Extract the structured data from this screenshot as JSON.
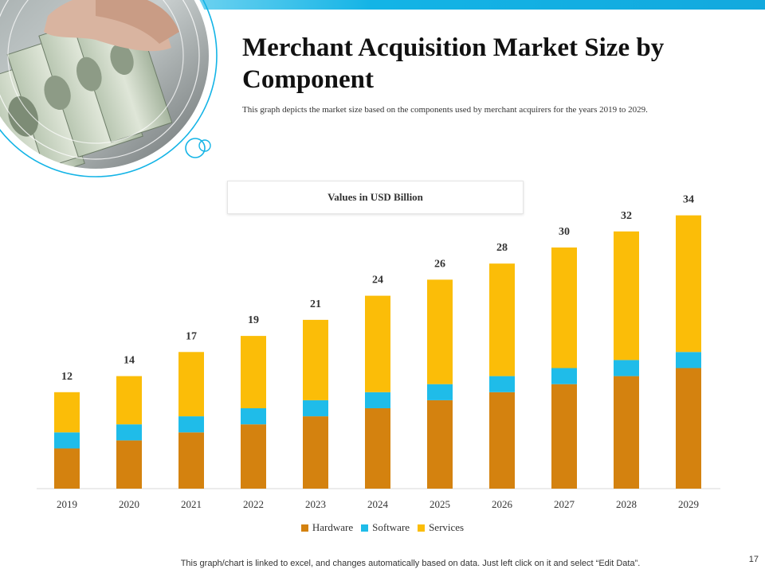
{
  "slide": {
    "title": "Merchant Acquisition Market Size by Component",
    "subtitle": "This graph depicts  the market size based on the components used by merchant acquirers  for the years  2019  to 2029.",
    "units_label": "Values in USD Billion",
    "footer": "This graph/chart is linked to excel,  and changes automatically based on data. Just left click on it and select “Edit Data”.",
    "page_number": "17"
  },
  "colors": {
    "hardware": "#d4820f",
    "software": "#1fbce9",
    "services": "#fbbd08",
    "accent": "#14b4e6"
  },
  "chart_data": {
    "type": "bar",
    "stacked": true,
    "categories": [
      "2019",
      "2020",
      "2021",
      "2022",
      "2023",
      "2024",
      "2025",
      "2026",
      "2027",
      "2028",
      "2029"
    ],
    "series": [
      {
        "name": "Hardware",
        "values": [
          5,
          6,
          7,
          8,
          9,
          10,
          11,
          12,
          13,
          14,
          15
        ]
      },
      {
        "name": "Software",
        "values": [
          2,
          2,
          2,
          2,
          2,
          2,
          2,
          2,
          2,
          2,
          2
        ]
      },
      {
        "name": "Services",
        "values": [
          5,
          6,
          8,
          9,
          10,
          12,
          13,
          14,
          15,
          16,
          17
        ]
      }
    ],
    "totals": [
      12,
      14,
      17,
      19,
      21,
      24,
      26,
      28,
      30,
      32,
      34
    ],
    "legend_position": "bottom",
    "grid": false
  }
}
